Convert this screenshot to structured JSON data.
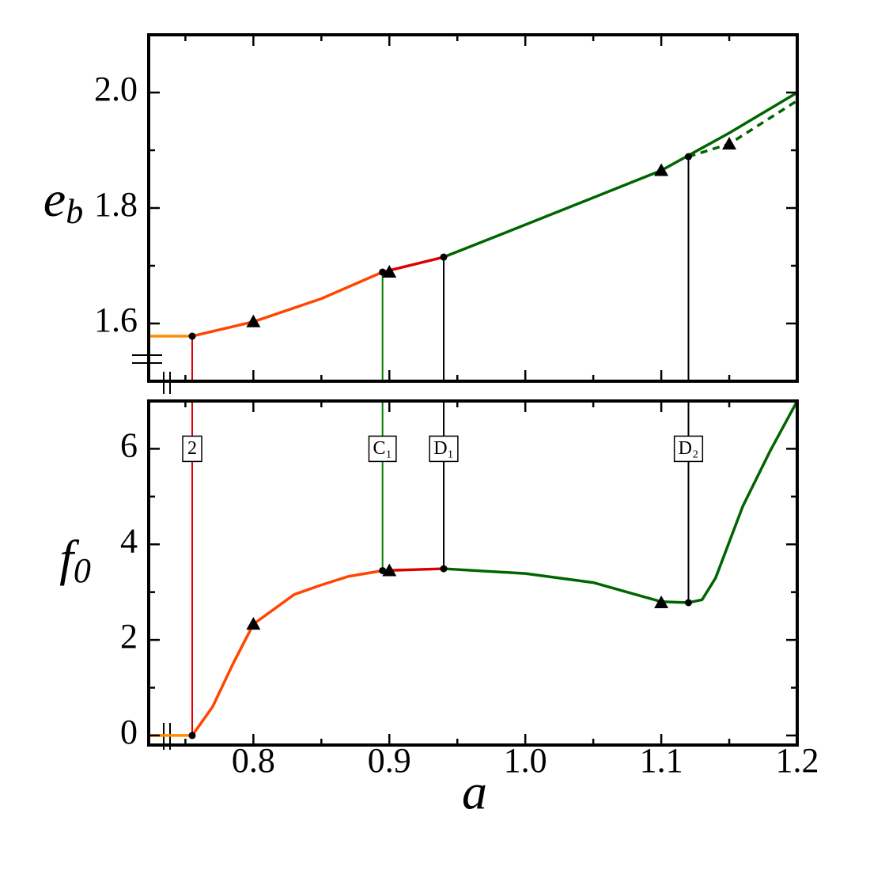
{
  "chart_data": [
    {
      "type": "line",
      "ylabel": "e",
      "ylabel_sub": "b",
      "xlim": [
        0.723,
        1.2
      ],
      "ylim": [
        1.5,
        2.1
      ],
      "xticks": [
        0.8,
        0.9,
        {
          "value": 1,
          "label": "1.0"
        },
        1.1,
        1.2
      ],
      "xminor": [
        0.75,
        0.85,
        0.95,
        1.05,
        1.15
      ],
      "show_xtick_labels": false,
      "yticks": [
        1.6,
        1.8,
        {
          "value": 2,
          "label": "2.0"
        }
      ],
      "yminor": [
        1.7,
        1.9
      ],
      "series": [
        {
          "color": "#ff8c00",
          "style": "solid",
          "x": [
            0.723,
            0.755
          ],
          "values": [
            1.578,
            1.578
          ]
        },
        {
          "color": "#ff4500",
          "style": "solid",
          "x": [
            0.755,
            0.8,
            0.85,
            0.895
          ],
          "values": [
            1.578,
            1.603,
            1.643,
            1.689
          ]
        },
        {
          "color": "#dd0000",
          "style": "solid",
          "x": [
            0.895,
            0.94
          ],
          "values": [
            1.689,
            1.715
          ]
        },
        {
          "color": "#006400",
          "style": "solid",
          "x": [
            0.94,
            1.0,
            1.05,
            1.1,
            1.15,
            1.2
          ],
          "values": [
            1.715,
            1.771,
            1.818,
            1.865,
            1.93,
            2.0
          ]
        },
        {
          "color": "#006400",
          "style": "dashed",
          "x": [
            1.12,
            1.15,
            1.2
          ],
          "values": [
            1.889,
            1.911,
            1.986
          ]
        },
        {
          "color": "#000000",
          "style": "dots",
          "x": [
            0.755,
            0.895,
            0.94,
            1.12
          ],
          "values": [
            1.578,
            1.689,
            1.715,
            1.889
          ]
        },
        {
          "color": "#000000",
          "style": "triangles",
          "x": [
            0.8,
            0.9,
            1.1,
            1.15
          ],
          "values": [
            1.603,
            1.689,
            1.865,
            1.911
          ]
        }
      ],
      "vlines": [
        {
          "x": 0.755,
          "y": 1.578,
          "color": "#e00000"
        },
        {
          "x": 0.895,
          "y": 1.689,
          "color": "#008000"
        },
        {
          "x": 0.94,
          "y": 1.715,
          "color": "#000000"
        },
        {
          "x": 1.12,
          "y": 1.889,
          "color": "#000000"
        }
      ],
      "vline_to": "bottom"
    },
    {
      "type": "line",
      "xlabel": "a",
      "ylabel": "f",
      "ylabel_sub": "0",
      "xlim": [
        0.723,
        1.2
      ],
      "ylim": [
        -0.2,
        7
      ],
      "xticks": [
        0.8,
        0.9,
        {
          "value": 1,
          "label": "1.0"
        },
        1.1,
        1.2
      ],
      "xminor": [
        0.75,
        0.85,
        0.95,
        1.05,
        1.15
      ],
      "show_xtick_labels": true,
      "yticks": [
        0,
        2,
        4,
        6
      ],
      "yminor": [
        1,
        3,
        5
      ],
      "series": [
        {
          "color": "#ff8c00",
          "style": "solid",
          "x": [
            0.723,
            0.755
          ],
          "values": [
            0,
            0
          ]
        },
        {
          "color": "#ff4500",
          "style": "solid",
          "x": [
            0.755,
            0.77,
            0.785,
            0.8,
            0.83,
            0.85,
            0.87,
            0.895
          ],
          "values": [
            0,
            0.6,
            1.5,
            2.33,
            2.95,
            3.15,
            3.33,
            3.45
          ]
        },
        {
          "color": "#dd0000",
          "style": "solid",
          "x": [
            0.895,
            0.94
          ],
          "values": [
            3.45,
            3.49
          ]
        },
        {
          "color": "#006400",
          "style": "solid",
          "x": [
            0.94,
            1.0,
            1.05,
            1.1,
            1.12,
            1.13,
            1.14,
            1.16,
            1.18,
            1.2
          ],
          "values": [
            3.49,
            3.39,
            3.2,
            2.8,
            2.78,
            2.84,
            3.3,
            4.8,
            5.95,
            7.0
          ]
        },
        {
          "color": "#000000",
          "style": "dots",
          "x": [
            0.755,
            0.895,
            0.94,
            1.12
          ],
          "values": [
            0,
            3.45,
            3.49,
            2.78
          ]
        },
        {
          "color": "#000000",
          "style": "triangles",
          "x": [
            0.8,
            0.9,
            1.1
          ],
          "values": [
            2.33,
            3.45,
            2.78
          ]
        }
      ],
      "vlines": [
        {
          "x": 0.755,
          "y": 0,
          "color": "#e00000"
        },
        {
          "x": 0.895,
          "y": 3.45,
          "color": "#008000"
        },
        {
          "x": 0.94,
          "y": 3.49,
          "color": "#000000"
        },
        {
          "x": 1.12,
          "y": 2.78,
          "color": "#000000"
        }
      ],
      "vline_to": "top",
      "annotations": [
        {
          "text": "2",
          "x": 0.755,
          "y": 6
        },
        {
          "text": "C₁",
          "x": 0.895,
          "y": 6
        },
        {
          "text": "D₁",
          "x": 0.94,
          "y": 6
        },
        {
          "text": "D₂",
          "x": 1.12,
          "y": 6
        }
      ]
    }
  ]
}
